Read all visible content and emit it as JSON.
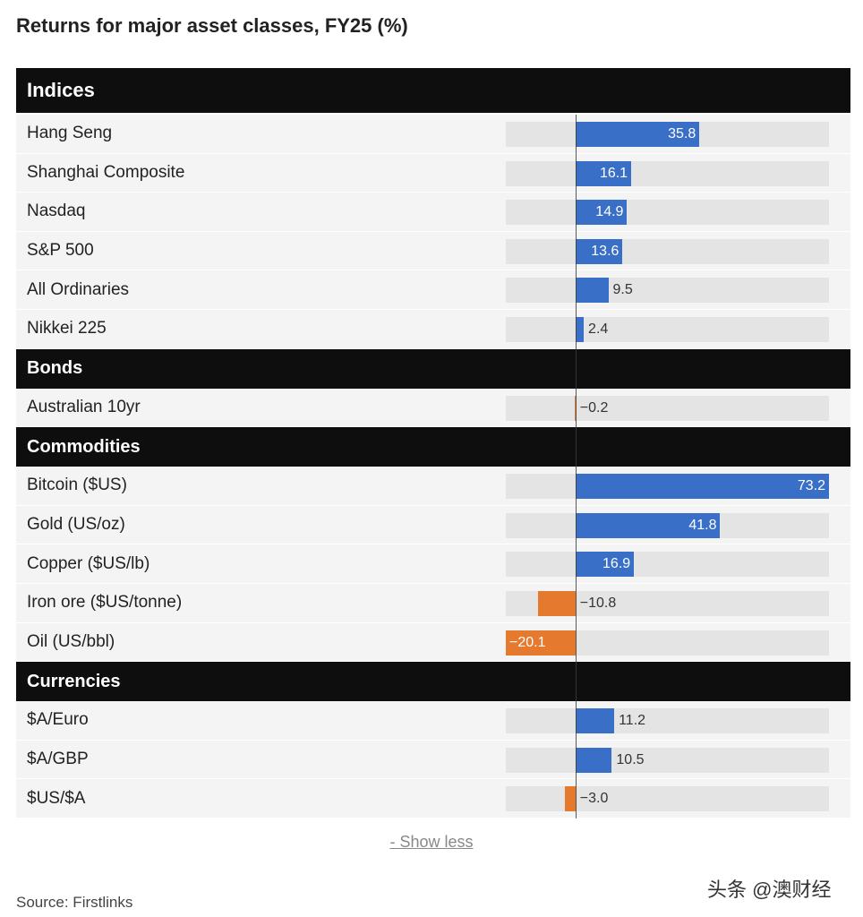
{
  "title": "Returns for major asset classes, FY25 (%)",
  "show_less": "- Show less",
  "source": "Source: Firstlinks",
  "watermark": "头条 @澳财经",
  "colors": {
    "positive": "#3a6fc7",
    "negative": "#e57a2e",
    "header": "#0e0e0e"
  },
  "chart_data": {
    "type": "bar",
    "orientation": "horizontal",
    "title": "Returns for major asset classes, FY25 (%)",
    "xlim": [
      -20.1,
      73.2
    ],
    "groups": [
      {
        "name": "Indices",
        "items": [
          {
            "label": "Hang Seng",
            "value": 35.8,
            "display": "35.8"
          },
          {
            "label": "Shanghai Composite",
            "value": 16.1,
            "display": "16.1"
          },
          {
            "label": "Nasdaq",
            "value": 14.9,
            "display": "14.9"
          },
          {
            "label": "S&P 500",
            "value": 13.6,
            "display": "13.6"
          },
          {
            "label": "All Ordinaries",
            "value": 9.5,
            "display": "9.5"
          },
          {
            "label": "Nikkei 225",
            "value": 2.4,
            "display": "2.4"
          }
        ]
      },
      {
        "name": "Bonds",
        "items": [
          {
            "label": "Australian 10yr",
            "value": -0.2,
            "display": "−0.2"
          }
        ]
      },
      {
        "name": "Commodities",
        "items": [
          {
            "label": "Bitcoin ($US)",
            "value": 73.2,
            "display": "73.2"
          },
          {
            "label": "Gold (US/oz)",
            "value": 41.8,
            "display": "41.8"
          },
          {
            "label": "Copper ($US/lb)",
            "value": 16.9,
            "display": "16.9"
          },
          {
            "label": "Iron ore ($US/tonne)",
            "value": -10.8,
            "display": "−10.8"
          },
          {
            "label": "Oil (US/bbl)",
            "value": -20.1,
            "display": "−20.1"
          }
        ]
      },
      {
        "name": "Currencies",
        "items": [
          {
            "label": "$A/Euro",
            "value": 11.2,
            "display": "11.2"
          },
          {
            "label": "$A/GBP",
            "value": 10.5,
            "display": "10.5"
          },
          {
            "label": "$US/$A",
            "value": -3.0,
            "display": "−3.0"
          }
        ]
      }
    ]
  }
}
